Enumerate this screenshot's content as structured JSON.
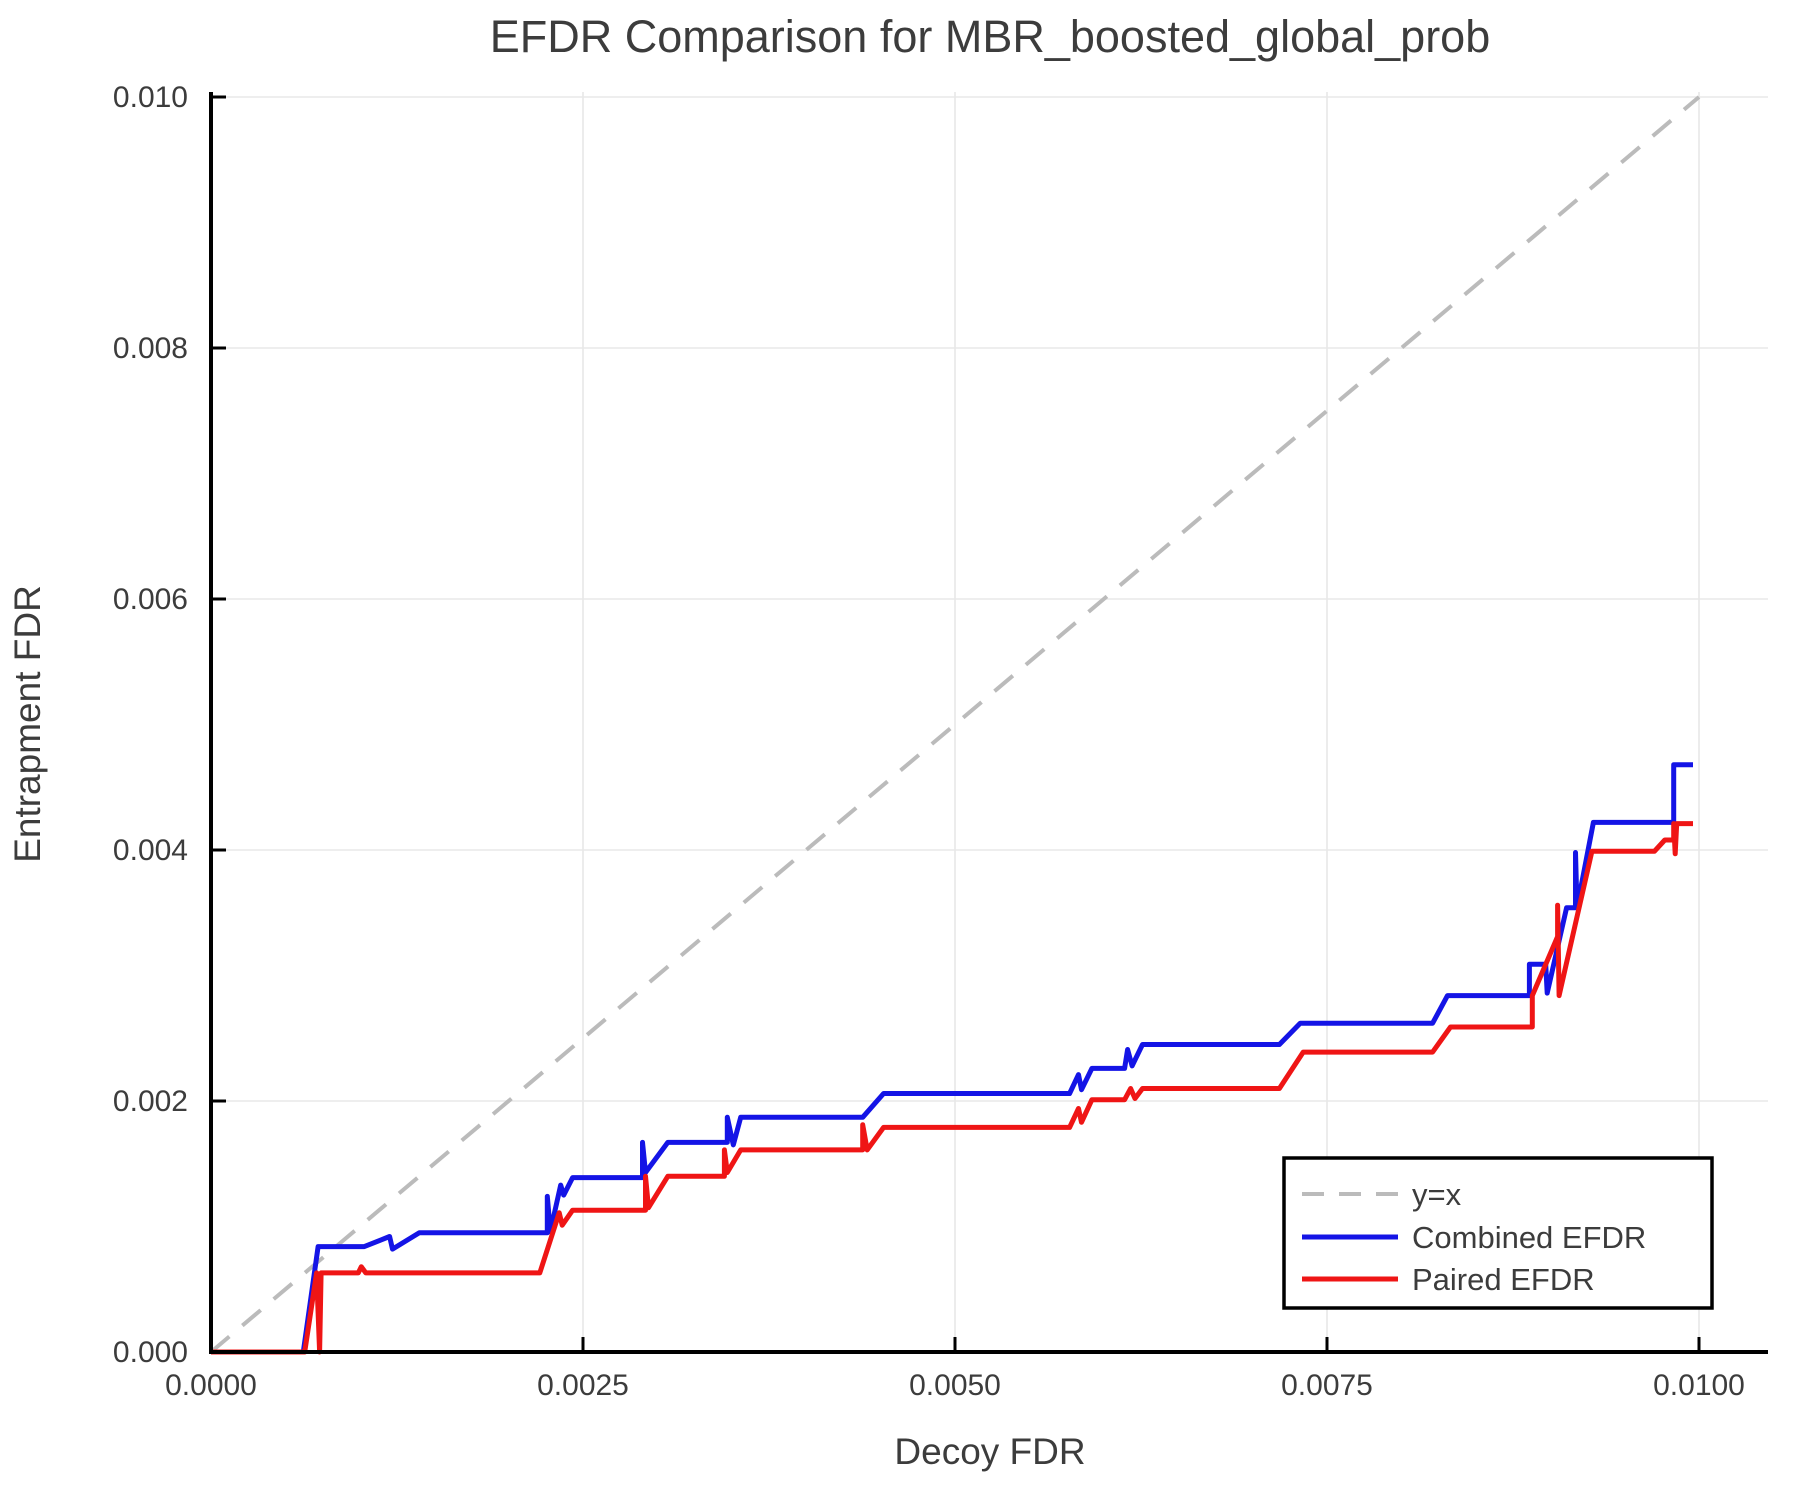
{
  "title": "EFDR Comparison for MBR_boosted_global_prob",
  "axes": {
    "xlabel": "Decoy FDR",
    "ylabel": "Entrapment FDR",
    "x_ticks": [
      0,
      0.0025,
      0.005,
      0.0075,
      0.01
    ],
    "x_tick_labels": [
      "0.0000",
      "0.0025",
      "0.0050",
      "0.0075",
      "0.0100"
    ],
    "y_ticks": [
      0,
      0.002,
      0.004,
      0.006,
      0.008,
      0.01
    ],
    "y_tick_labels": [
      "0.000",
      "0.002",
      "0.004",
      "0.006",
      "0.008",
      "0.010"
    ],
    "xlim": [
      0,
      0.01046
    ],
    "ylim": [
      0,
      0.01004
    ],
    "grid": true,
    "grid_color": "#e8e8e8",
    "spine_color": "#000000",
    "text_color": "#3c3c3c"
  },
  "legend": {
    "position": "bottom-right",
    "items": [
      {
        "label": "y=x",
        "color": "#bbbbbb",
        "dashed": true
      },
      {
        "label": "Combined EFDR",
        "color": "#1414e6",
        "dashed": false
      },
      {
        "label": "Paired EFDR",
        "color": "#ef1515",
        "dashed": false
      }
    ]
  },
  "chart_data": {
    "type": "line",
    "title": "EFDR Comparison for MBR_boosted_global_prob",
    "xlabel": "Decoy FDR",
    "ylabel": "Entrapment FDR",
    "xlim": [
      0,
      0.01046
    ],
    "ylim": [
      0,
      0.01004
    ],
    "legend_position": "bottom-right",
    "series": [
      {
        "name": "y=x",
        "style": "dashed",
        "color": "#bbbbbb",
        "width": 4,
        "points": [
          [
            0,
            0
          ],
          [
            0.01,
            0.01
          ]
        ]
      },
      {
        "name": "Combined EFDR",
        "style": "solid",
        "color": "#1414e6",
        "width": 5,
        "points": [
          [
            0,
            0
          ],
          [
            0.00062,
            0
          ],
          [
            0.00072,
            0.00084
          ],
          [
            0.00103,
            0.00084
          ],
          [
            0.0012,
            0.00092
          ],
          [
            0.00122,
            0.00082
          ],
          [
            0.0014,
            0.00095
          ],
          [
            0.00226,
            0.00095
          ],
          [
            0.00226,
            0.00124
          ],
          [
            0.00228,
            0.00096
          ],
          [
            0.00235,
            0.00133
          ],
          [
            0.00237,
            0.00125
          ],
          [
            0.00243,
            0.00139
          ],
          [
            0.0029,
            0.00139
          ],
          [
            0.0029,
            0.00167
          ],
          [
            0.00292,
            0.00143
          ],
          [
            0.00307,
            0.00167
          ],
          [
            0.00347,
            0.00167
          ],
          [
            0.00347,
            0.00187
          ],
          [
            0.00351,
            0.00165
          ],
          [
            0.00356,
            0.00187
          ],
          [
            0.00438,
            0.00187
          ],
          [
            0.00452,
            0.00206
          ],
          [
            0.00577,
            0.00206
          ],
          [
            0.00583,
            0.00221
          ],
          [
            0.00585,
            0.00209
          ],
          [
            0.00592,
            0.00226
          ],
          [
            0.00614,
            0.00226
          ],
          [
            0.00616,
            0.00241
          ],
          [
            0.00619,
            0.00228
          ],
          [
            0.00626,
            0.00245
          ],
          [
            0.00718,
            0.00245
          ],
          [
            0.00732,
            0.00262
          ],
          [
            0.00821,
            0.00262
          ],
          [
            0.00831,
            0.00284
          ],
          [
            0.00886,
            0.00284
          ],
          [
            0.00886,
            0.00309
          ],
          [
            0.00897,
            0.00309
          ],
          [
            0.00898,
            0.00286
          ],
          [
            0.00911,
            0.00354
          ],
          [
            0.00917,
            0.00354
          ],
          [
            0.00917,
            0.00398
          ],
          [
            0.00918,
            0.00354
          ],
          [
            0.00929,
            0.00422
          ],
          [
            0.00983,
            0.00422
          ],
          [
            0.00983,
            0.00468
          ],
          [
            0.00996,
            0.00468
          ]
        ]
      },
      {
        "name": "Paired EFDR",
        "style": "solid",
        "color": "#ef1515",
        "width": 5,
        "points": [
          [
            0,
            0
          ],
          [
            0.00063,
            0
          ],
          [
            0.00071,
            0.00063
          ],
          [
            0.00073,
            0
          ],
          [
            0.00074,
            0.00063
          ],
          [
            0.00099,
            0.00063
          ],
          [
            0.00101,
            0.00068
          ],
          [
            0.00104,
            0.00063
          ],
          [
            0.00221,
            0.00063
          ],
          [
            0.00234,
            0.00111
          ],
          [
            0.00236,
            0.00101
          ],
          [
            0.00243,
            0.00113
          ],
          [
            0.00292,
            0.00113
          ],
          [
            0.00292,
            0.0014
          ],
          [
            0.00294,
            0.00115
          ],
          [
            0.00307,
            0.0014
          ],
          [
            0.00345,
            0.0014
          ],
          [
            0.00345,
            0.00161
          ],
          [
            0.00347,
            0.00143
          ],
          [
            0.00356,
            0.00161
          ],
          [
            0.00438,
            0.00161
          ],
          [
            0.00438,
            0.00181
          ],
          [
            0.00441,
            0.00161
          ],
          [
            0.00452,
            0.00179
          ],
          [
            0.00577,
            0.00179
          ],
          [
            0.00583,
            0.00194
          ],
          [
            0.00585,
            0.00183
          ],
          [
            0.00592,
            0.00201
          ],
          [
            0.00614,
            0.00201
          ],
          [
            0.00618,
            0.0021
          ],
          [
            0.00621,
            0.00202
          ],
          [
            0.00626,
            0.0021
          ],
          [
            0.00718,
            0.0021
          ],
          [
            0.00734,
            0.00239
          ],
          [
            0.00821,
            0.00239
          ],
          [
            0.00833,
            0.00259
          ],
          [
            0.00888,
            0.00259
          ],
          [
            0.00888,
            0.00284
          ],
          [
            0.00905,
            0.00331
          ],
          [
            0.00905,
            0.00356
          ],
          [
            0.00906,
            0.00284
          ],
          [
            0.00928,
            0.00399
          ],
          [
            0.0097,
            0.00399
          ],
          [
            0.00977,
            0.00408
          ],
          [
            0.00983,
            0.00408
          ],
          [
            0.00983,
            0.00421
          ],
          [
            0.00984,
            0.00397
          ],
          [
            0.00985,
            0.00421
          ],
          [
            0.00996,
            0.00421
          ]
        ]
      }
    ]
  }
}
